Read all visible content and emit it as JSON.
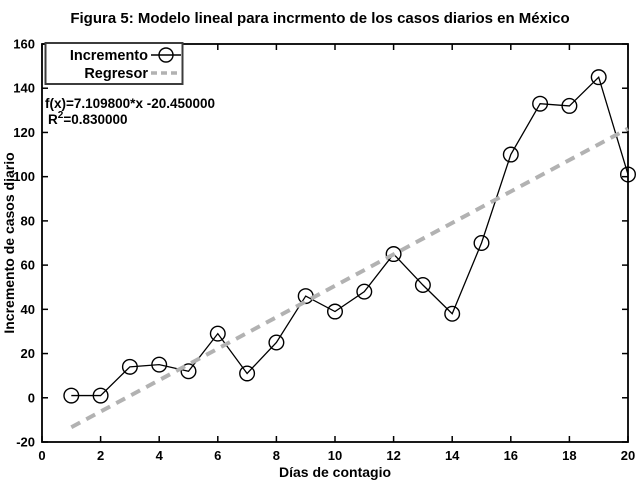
{
  "chart_data": {
    "type": "line",
    "title": "Figura 5: Modelo lineal para incrmento de los casos diarios en México",
    "xlabel": "Días de contagio",
    "ylabel": "Incremento de casos diario",
    "xlim": [
      0,
      20
    ],
    "ylim": [
      -20,
      160
    ],
    "xticks": [
      0,
      2,
      4,
      6,
      8,
      10,
      12,
      14,
      16,
      18,
      20
    ],
    "yticks": [
      -20,
      0,
      20,
      40,
      60,
      80,
      100,
      120,
      140,
      160
    ],
    "grid": false,
    "legend": [
      {
        "label": "Incremento",
        "sample": "line-circle"
      },
      {
        "label": "Regresor",
        "sample": "dashed"
      }
    ],
    "annotations": {
      "equation": "f(x)=7.109800*x -20.450000",
      "r2": {
        "base": "R",
        "sup": "2",
        "rest": "=0.830000"
      }
    },
    "colors": {
      "axis": "#000000",
      "series": "#000000",
      "regressor": "#b2b2b2"
    },
    "series": [
      {
        "name": "Incremento",
        "type": "line+circle-marker",
        "x": [
          1,
          2,
          3,
          4,
          5,
          6,
          7,
          8,
          9,
          10,
          11,
          12,
          13,
          14,
          15,
          16,
          17,
          18,
          19,
          20
        ],
        "values": [
          1,
          1,
          14,
          15,
          12,
          29,
          11,
          25,
          46,
          39,
          48,
          65,
          51,
          38,
          70,
          110,
          133,
          132,
          145,
          101
        ]
      },
      {
        "name": "Regresor",
        "type": "regression-line",
        "slope": 7.1098,
        "intercept": -20.45,
        "r_squared": 0.83,
        "x_start": 1,
        "x_end": 20
      }
    ]
  }
}
